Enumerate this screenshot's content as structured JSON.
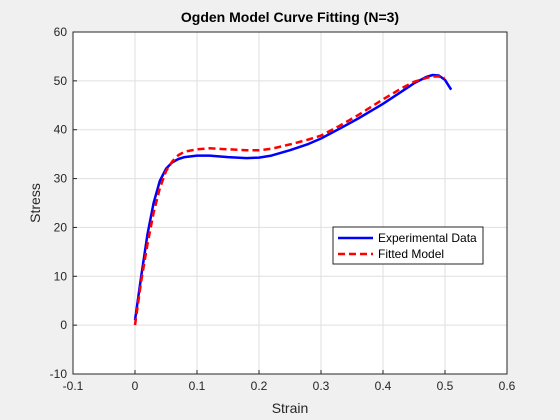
{
  "chart_data": {
    "type": "line",
    "title": "Ogden Model Curve Fitting (N=3)",
    "xlabel": "Strain",
    "ylabel": "Stress",
    "xlim": [
      -0.1,
      0.6
    ],
    "ylim": [
      -10,
      60
    ],
    "xticks": [
      -0.1,
      0,
      0.1,
      0.2,
      0.3,
      0.4,
      0.5,
      0.6
    ],
    "yticks": [
      -10,
      0,
      10,
      20,
      30,
      40,
      50,
      60
    ],
    "xtick_labels": [
      "-0.1",
      "0",
      "0.1",
      "0.2",
      "0.3",
      "0.4",
      "0.5",
      "0.6"
    ],
    "ytick_labels": [
      "-10",
      "0",
      "10",
      "20",
      "30",
      "40",
      "50",
      "60"
    ],
    "grid": true,
    "legend_position": "right-middle",
    "series": [
      {
        "name": "Experimental Data",
        "color": "#0000ff",
        "style": "solid",
        "x": [
          0,
          0.01,
          0.02,
          0.03,
          0.04,
          0.05,
          0.06,
          0.07,
          0.08,
          0.1,
          0.12,
          0.15,
          0.18,
          0.2,
          0.22,
          0.25,
          0.28,
          0.3,
          0.33,
          0.36,
          0.4,
          0.43,
          0.45,
          0.47,
          0.48,
          0.49,
          0.5,
          0.51
        ],
        "y": [
          1.0,
          10.0,
          18.5,
          25.0,
          29.5,
          32.0,
          33.3,
          34.0,
          34.4,
          34.7,
          34.7,
          34.4,
          34.2,
          34.3,
          34.7,
          35.8,
          37.1,
          38.2,
          40.2,
          42.3,
          45.3,
          47.8,
          49.5,
          50.8,
          51.2,
          51.1,
          50.2,
          48.2
        ]
      },
      {
        "name": "Fitted Model",
        "color": "#ff0000",
        "style": "dashed",
        "x": [
          0,
          0.01,
          0.02,
          0.03,
          0.04,
          0.05,
          0.06,
          0.07,
          0.08,
          0.1,
          0.12,
          0.15,
          0.18,
          0.2,
          0.22,
          0.25,
          0.28,
          0.3,
          0.33,
          0.36,
          0.4,
          0.43,
          0.45,
          0.47,
          0.48,
          0.49,
          0.5
        ],
        "y": [
          0.0,
          9.0,
          16.5,
          23.0,
          28.0,
          31.5,
          33.5,
          34.8,
          35.5,
          36.0,
          36.2,
          36.0,
          35.8,
          35.8,
          36.1,
          37.0,
          38.0,
          38.8,
          40.8,
          43.0,
          46.2,
          48.5,
          49.8,
          50.6,
          50.9,
          50.9,
          50.6
        ]
      }
    ]
  }
}
